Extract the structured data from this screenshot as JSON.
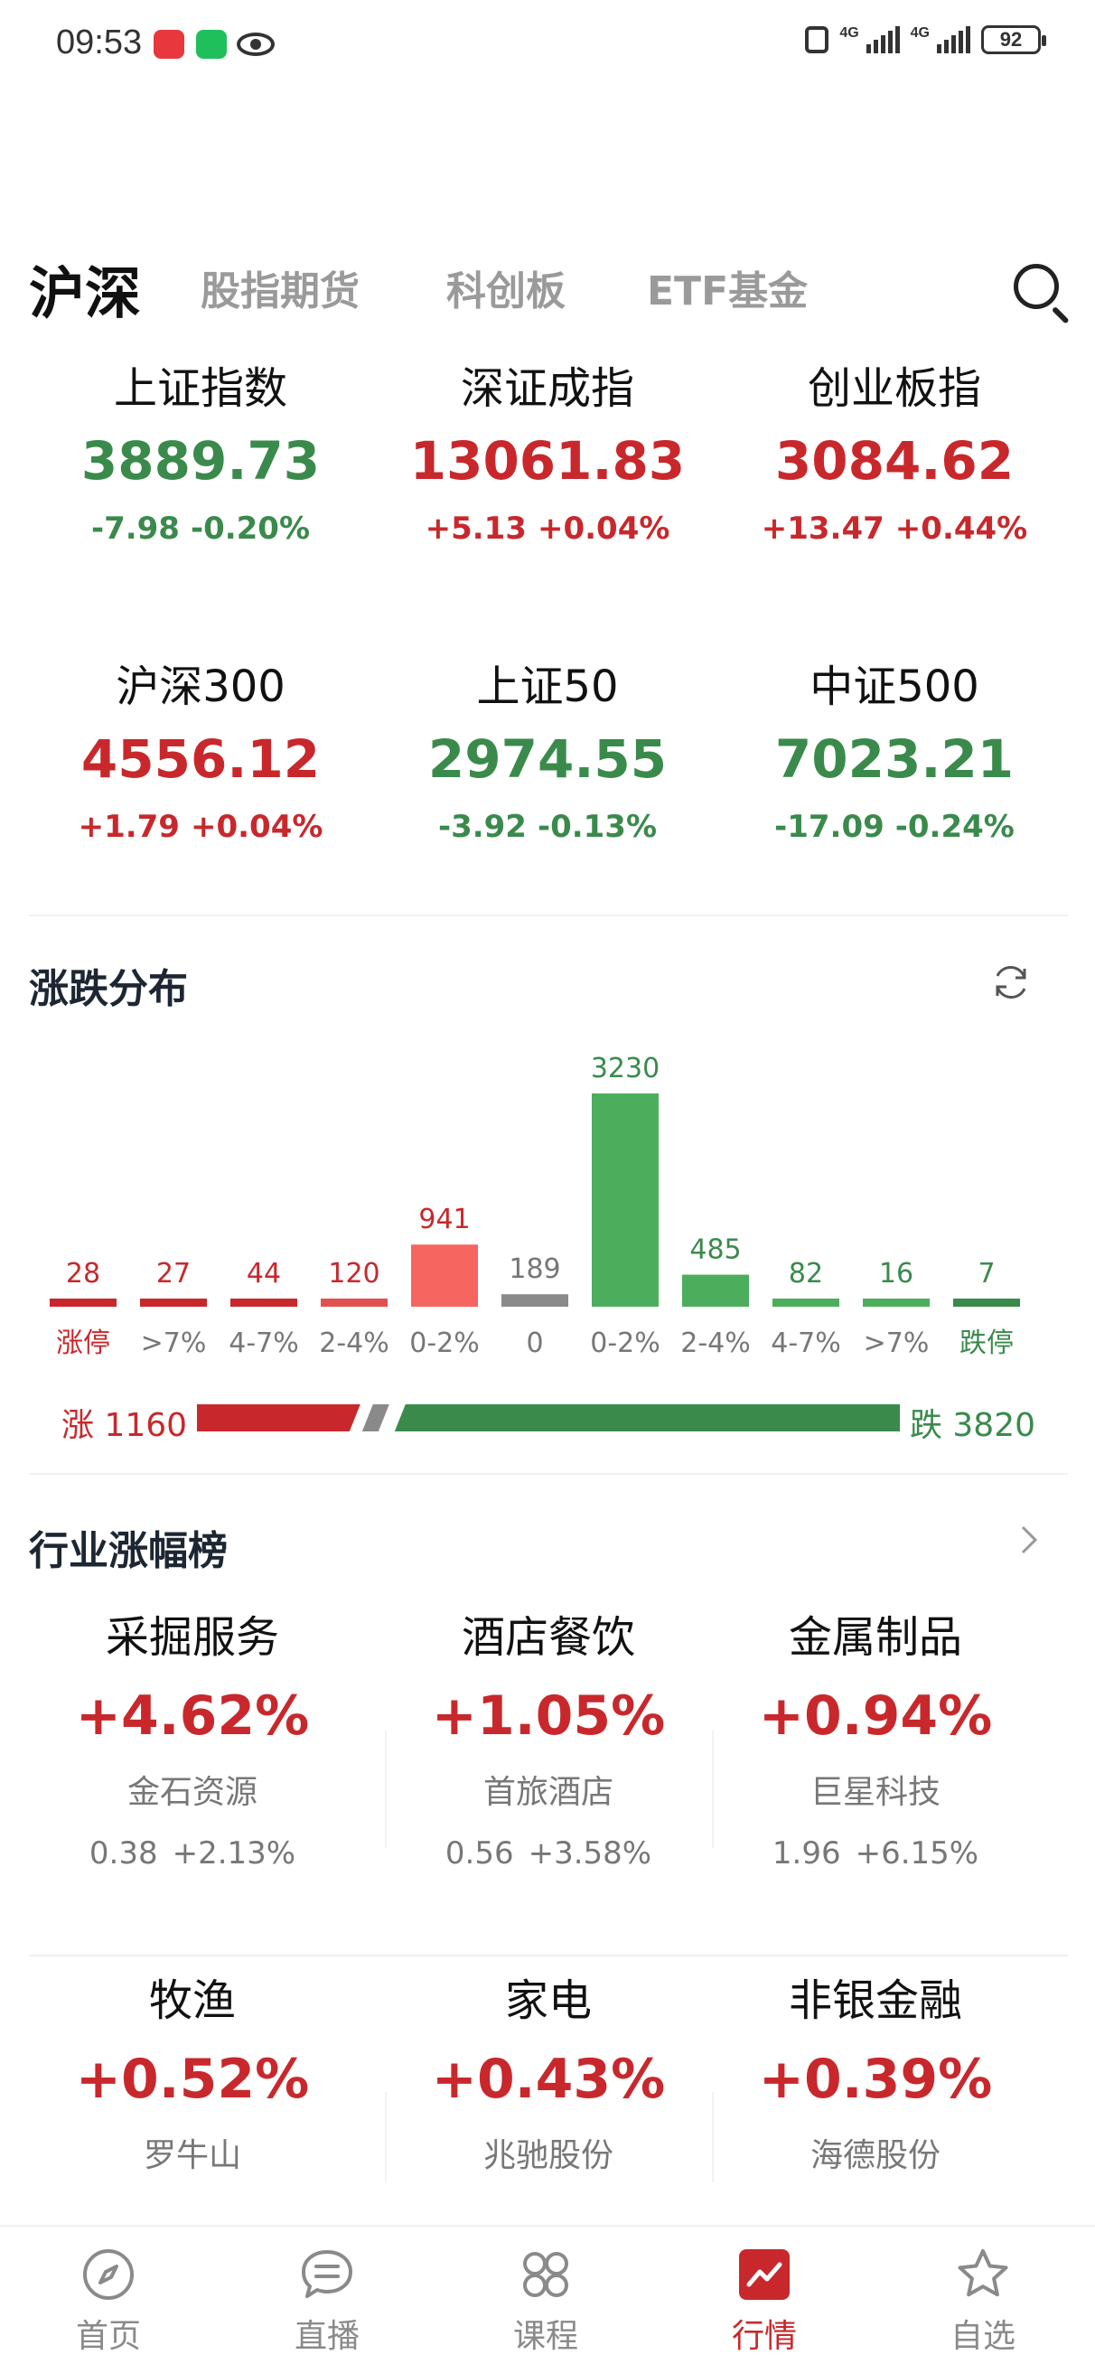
{
  "status_bar": {
    "time": "09:53",
    "network1": "4G",
    "network2": "4G",
    "battery": "92"
  },
  "tabs": [
    {
      "label": "沪深",
      "active": true
    },
    {
      "label": "股指期货",
      "active": false
    },
    {
      "label": "科创板",
      "active": false
    },
    {
      "label": "ETF基金",
      "active": false
    }
  ],
  "indices": [
    {
      "name": "上证指数",
      "value": "3889.73",
      "change": "-7.98",
      "pct": "-0.20%",
      "dir": "down"
    },
    {
      "name": "深证成指",
      "value": "13061.83",
      "change": "+5.13",
      "pct": "+0.04%",
      "dir": "up"
    },
    {
      "name": "创业板指",
      "value": "3084.62",
      "change": "+13.47",
      "pct": "+0.44%",
      "dir": "up"
    },
    {
      "name": "沪深300",
      "value": "4556.12",
      "change": "+1.79",
      "pct": "+0.04%",
      "dir": "up"
    },
    {
      "name": "上证50",
      "value": "2974.55",
      "change": "-3.92",
      "pct": "-0.13%",
      "dir": "down"
    },
    {
      "name": "中证500",
      "value": "7023.21",
      "change": "-17.09",
      "pct": "-0.24%",
      "dir": "down"
    }
  ],
  "distribution": {
    "title": "涨跌分布",
    "up_label": "涨 1160",
    "down_label": "跌 3820",
    "up_total": 1160,
    "down_total": 3820
  },
  "chart_data": {
    "type": "bar",
    "categories": [
      "涨停",
      ">7%",
      "4-7%",
      "2-4%",
      "0-2%",
      "0",
      "0-2%",
      "2-4%",
      "4-7%",
      ">7%",
      "跌停"
    ],
    "values": [
      28,
      27,
      44,
      120,
      941,
      189,
      3230,
      485,
      82,
      16,
      7
    ],
    "bar_colors": [
      "#c8282c",
      "#c8282c",
      "#c8282c",
      "#e0514f",
      "#f76560",
      "#8a8a8a",
      "#4cae5c",
      "#4cae5c",
      "#4cae5c",
      "#4cae5c",
      "#3a8a4c"
    ],
    "label_colors": [
      "#c8282c",
      "#c8282c",
      "#c8282c",
      "#c8282c",
      "#c8282c",
      "#777777",
      "#3a8a4c",
      "#3a8a4c",
      "#3a8a4c",
      "#3a8a4c",
      "#3a8a4c"
    ],
    "category_colors": [
      "#c8282c",
      "#777777",
      "#777777",
      "#777777",
      "#777777",
      "#777777",
      "#777777",
      "#777777",
      "#777777",
      "#777777",
      "#3a8a4c"
    ]
  },
  "industry": {
    "title": "行业涨幅榜",
    "items": [
      {
        "name": "采掘服务",
        "pct": "+4.62%",
        "stock": "金石资源",
        "price": "0.38",
        "stock_pct": "+2.13%"
      },
      {
        "name": "酒店餐饮",
        "pct": "+1.05%",
        "stock": "首旅酒店",
        "price": "0.56",
        "stock_pct": "+3.58%"
      },
      {
        "name": "金属制品",
        "pct": "+0.94%",
        "stock": "巨星科技",
        "price": "1.96",
        "stock_pct": "+6.15%"
      },
      {
        "name": "牧渔",
        "pct": "+0.52%",
        "stock": "罗牛山",
        "price": "",
        "stock_pct": ""
      },
      {
        "name": "家电",
        "pct": "+0.43%",
        "stock": "兆驰股份",
        "price": "",
        "stock_pct": ""
      },
      {
        "name": "非银金融",
        "pct": "+0.39%",
        "stock": "海德股份",
        "price": "",
        "stock_pct": ""
      }
    ]
  },
  "bottom_nav": [
    {
      "label": "首页",
      "icon": "compass-icon",
      "active": false
    },
    {
      "label": "直播",
      "icon": "chat-icon",
      "active": false
    },
    {
      "label": "课程",
      "icon": "grid-icon",
      "active": false
    },
    {
      "label": "行情",
      "icon": "trend-icon",
      "active": true
    },
    {
      "label": "自选",
      "icon": "star-icon",
      "active": false
    }
  ],
  "colors": {
    "up": "#c8282c",
    "down": "#3a8a4c",
    "flat": "#8a8a8a"
  }
}
